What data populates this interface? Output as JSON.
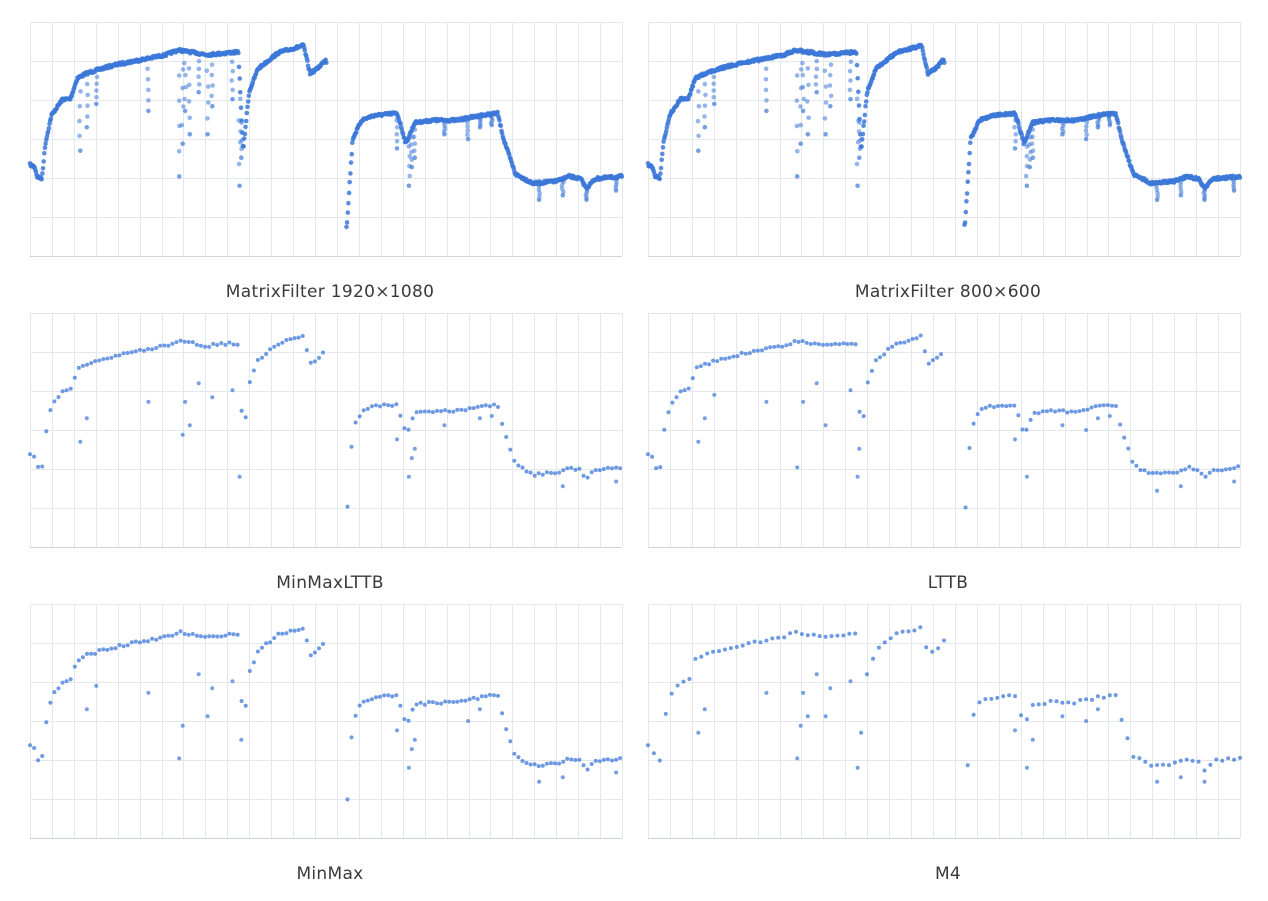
{
  "style": {
    "point_color": "#3c78d8",
    "grid_color": "#e4e7ec",
    "background": "#ffffff"
  },
  "chart_data": [
    {
      "type": "scatter",
      "title": "MatrixFilter 1920×1080",
      "downsampler": "MatrixFilter",
      "resolution": "1920×1080",
      "density": 1.0,
      "grid": true,
      "axes_labels": false
    },
    {
      "type": "scatter",
      "title": "MatrixFilter 800×600",
      "downsampler": "MatrixFilter",
      "resolution": "800×600",
      "density": 1.0,
      "grid": true,
      "axes_labels": false
    },
    {
      "type": "scatter",
      "title": "MinMaxLTTB",
      "downsampler": "MinMaxLTTB",
      "density": 0.32,
      "grid": true,
      "axes_labels": false
    },
    {
      "type": "scatter",
      "title": "LTTB",
      "downsampler": "LTTB",
      "density": 0.32,
      "grid": true,
      "axes_labels": false
    },
    {
      "type": "scatter",
      "title": "MinMax",
      "downsampler": "MinMax",
      "density": 0.32,
      "grid": true,
      "axes_labels": false
    },
    {
      "type": "scatter",
      "title": "M4",
      "downsampler": "M4",
      "density": 0.22,
      "grid": true,
      "axes_labels": false
    }
  ]
}
